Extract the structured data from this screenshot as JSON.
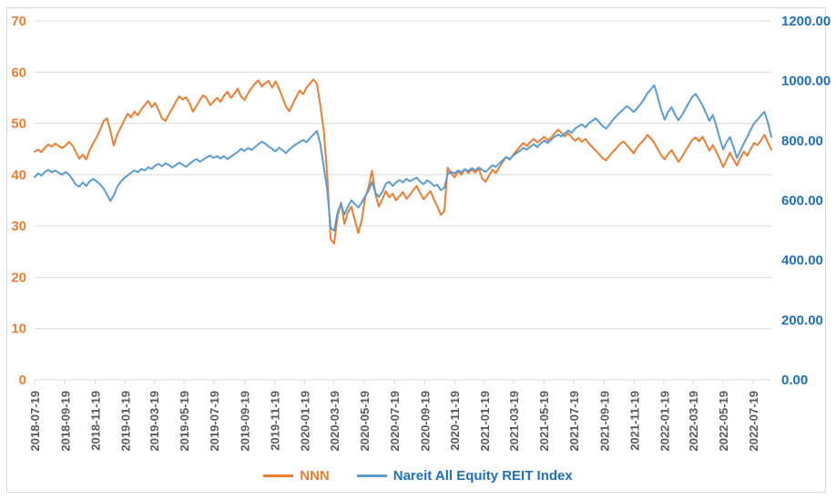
{
  "window": {
    "background": "#FFFFFF",
    "border_color": "#D9D9D9"
  },
  "chart_data": {
    "type": "line",
    "title": "",
    "legend_position": "bottom",
    "grid": "horizontal",
    "gridline_color": "#D9D9D9",
    "axis_line_color": "#D9D9D9",
    "x_start_date": "2018-07-19",
    "x_interval_days": 7,
    "x_tick_label_color": "#595959",
    "x_tick_labels": [
      "2018-07-19",
      "2018-09-19",
      "2018-11-19",
      "2019-01-19",
      "2019-03-19",
      "2019-05-19",
      "2019-07-19",
      "2019-09-19",
      "2019-11-19",
      "2020-01-19",
      "2020-03-19",
      "2020-05-19",
      "2020-07-19",
      "2020-09-19",
      "2020-11-19",
      "2021-01-19",
      "2021-03-19",
      "2021-05-19",
      "2021-07-19",
      "2021-09-19",
      "2021-11-19",
      "2022-01-19",
      "2022-03-19",
      "2022-05-19",
      "2022-07-19"
    ],
    "left_axis": {
      "min": 0,
      "max": 70,
      "tick_step": 10,
      "tick_labels": [
        "0",
        "10",
        "20",
        "30",
        "40",
        "50",
        "60",
        "70"
      ],
      "label_color": "#ED7D31"
    },
    "right_axis": {
      "min": 0,
      "max": 1200,
      "tick_step": 200,
      "tick_labels": [
        "0.00",
        "200.00",
        "400.00",
        "600.00",
        "800.00",
        "1000.00",
        "1200.00"
      ],
      "label_color": "#1F6FC0"
    },
    "series": [
      {
        "name": "NNN",
        "axis": "left",
        "line_color": "#ED7D31",
        "label_color": "#ED7D31",
        "values": [
          44.5,
          44.9,
          44.4,
          45.3,
          45.9,
          45.5,
          46.1,
          45.6,
          45.2,
          45.7,
          46.4,
          45.7,
          44.4,
          43.1,
          43.9,
          43.0,
          44.8,
          46.1,
          47.3,
          48.7,
          50.4,
          51.0,
          48.6,
          45.7,
          47.8,
          49.2,
          50.6,
          51.9,
          51.2,
          52.3,
          51.6,
          52.8,
          53.6,
          54.4,
          53.2,
          54.0,
          52.6,
          51.0,
          50.5,
          51.8,
          52.9,
          54.2,
          55.3,
          54.7,
          55.1,
          54.0,
          52.3,
          53.4,
          54.6,
          55.5,
          54.9,
          53.6,
          54.3,
          55.0,
          54.2,
          55.4,
          56.2,
          55.0,
          55.8,
          56.8,
          55.2,
          54.6,
          55.9,
          56.9,
          57.8,
          58.4,
          57.2,
          57.9,
          58.3,
          57.0,
          58.2,
          56.8,
          55.1,
          53.3,
          52.4,
          53.8,
          55.2,
          56.4,
          55.7,
          57.0,
          57.8,
          58.6,
          57.7,
          53.5,
          48.5,
          40.0,
          27.4,
          26.6,
          31.8,
          34.6,
          30.4,
          32.6,
          33.8,
          31.2,
          28.6,
          31.0,
          35.4,
          37.6,
          40.8,
          36.2,
          33.8,
          35.2,
          36.8,
          35.6,
          36.3,
          35.0,
          35.8,
          36.6,
          35.3,
          36.1,
          37.0,
          37.8,
          36.4,
          35.2,
          36.0,
          36.8,
          35.2,
          33.8,
          32.2,
          32.9,
          41.4,
          40.2,
          39.5,
          40.7,
          40.0,
          41.1,
          40.3,
          41.0,
          40.4,
          41.2,
          39.3,
          38.6,
          39.8,
          41.0,
          40.3,
          41.5,
          42.5,
          43.5,
          42.9,
          43.9,
          44.7,
          45.5,
          46.2,
          45.6,
          46.4,
          47.0,
          46.3,
          46.8,
          47.4,
          46.7,
          47.2,
          48.0,
          48.8,
          48.2,
          47.5,
          48.1,
          47.3,
          46.6,
          47.2,
          46.4,
          47.0,
          46.1,
          45.4,
          44.7,
          44.0,
          43.2,
          42.8,
          43.7,
          44.5,
          45.2,
          46.0,
          46.5,
          45.8,
          45.0,
          44.2,
          45.3,
          46.1,
          46.8,
          47.8,
          47.1,
          46.2,
          45.0,
          43.8,
          43.0,
          44.0,
          44.8,
          43.7,
          42.5,
          43.4,
          44.6,
          45.7,
          46.8,
          47.3,
          46.5,
          47.4,
          46.1,
          44.7,
          45.8,
          44.5,
          43.1,
          41.5,
          42.9,
          44.3,
          43.0,
          41.8,
          43.3,
          44.5,
          43.7,
          45.0,
          46.2,
          45.8,
          46.7,
          47.8,
          46.3,
          44.9
        ]
      },
      {
        "name": "Nareit All Equity REIT Index",
        "axis": "right",
        "line_color": "#5B9BD5",
        "label_color": "#1F6FC0",
        "values": [
          678,
          690,
          683,
          695,
          702,
          694,
          700,
          692,
          686,
          695,
          686,
          670,
          652,
          646,
          660,
          648,
          664,
          672,
          664,
          654,
          640,
          620,
          598,
          616,
          645,
          662,
          674,
          683,
          692,
          700,
          694,
          705,
          700,
          711,
          705,
          716,
          722,
          714,
          724,
          718,
          710,
          718,
          726,
          719,
          712,
          722,
          731,
          738,
          729,
          736,
          744,
          750,
          742,
          748,
          740,
          748,
          738,
          746,
          754,
          762,
          772,
          765,
          775,
          768,
          778,
          788,
          796,
          790,
          780,
          772,
          764,
          776,
          768,
          758,
          770,
          780,
          788,
          795,
          802,
          794,
          808,
          820,
          832,
          788,
          710,
          636,
          508,
          498,
          560,
          588,
          552,
          578,
          600,
          588,
          576,
          592,
          614,
          632,
          662,
          624,
          612,
          628,
          655,
          662,
          648,
          660,
          668,
          660,
          672,
          664,
          670,
          676,
          662,
          654,
          667,
          660,
          648,
          652,
          634,
          642,
          688,
          696,
          690,
          700,
          694,
          704,
          698,
          708,
          700,
          710,
          702,
          695,
          706,
          718,
          712,
          724,
          734,
          745,
          738,
          750,
          758,
          766,
          776,
          770,
          780,
          788,
          778,
          790,
          800,
          792,
          802,
          812,
          820,
          814,
          824,
          834,
          826,
          840,
          848,
          854,
          844,
          858,
          866,
          874,
          862,
          848,
          840,
          854,
          870,
          882,
          894,
          904,
          915,
          907,
          895,
          908,
          922,
          938,
          958,
          972,
          985,
          946,
          903,
          870,
          895,
          912,
          887,
          868,
          884,
          905,
          926,
          946,
          956,
          938,
          918,
          892,
          866,
          886,
          850,
          808,
          770,
          795,
          812,
          778,
          742,
          766,
          790,
          812,
          836,
          858,
          870,
          884,
          896,
          860,
          812
        ]
      }
    ]
  }
}
